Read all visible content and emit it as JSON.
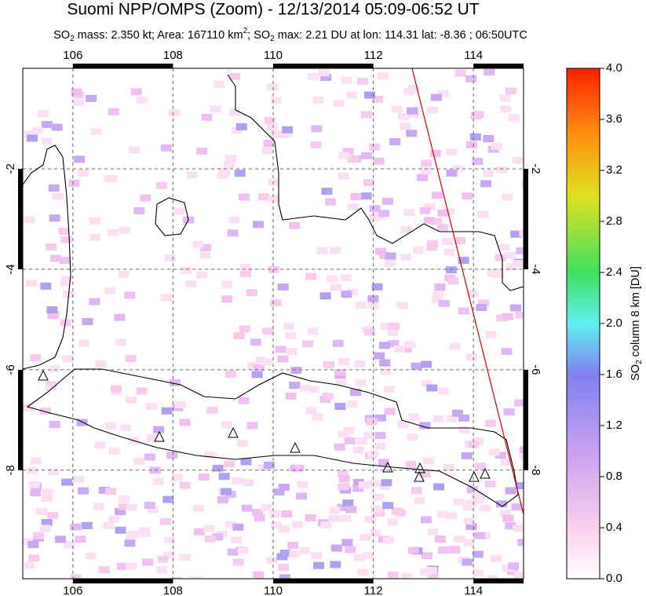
{
  "chart_data": {
    "type": "map",
    "title": "Suomi NPP/OMPS (Zoom) - 12/13/2014 05:09-06:52 UT",
    "subtitle_parts": [
      "SO",
      "2",
      " mass: 2.350 kt; Area: 167110 km",
      "2",
      "; SO",
      "2",
      " max: 2.21 DU at lon: 114.31 lat: -8.36 ; 06:50UTC"
    ],
    "xlim": [
      105,
      115
    ],
    "xticks": [
      106,
      108,
      110,
      112,
      114
    ],
    "ylim": [
      -10.16,
      0
    ],
    "yticks": [
      -2,
      -4,
      -6,
      -8
    ],
    "grid": true,
    "colorbar": {
      "label_parts": [
        "SO",
        "2",
        " column 8 km [DU]"
      ],
      "lim": [
        0,
        4
      ],
      "ticks": [
        {
          "value": 0,
          "label": "0.0"
        },
        0.4,
        0.8,
        1.2,
        1.6,
        {
          "value": 2,
          "label": "2.0"
        },
        2.4,
        2.8,
        3.2,
        3.6,
        {
          "value": 4,
          "label": "4.0"
        }
      ]
    }
  }
}
